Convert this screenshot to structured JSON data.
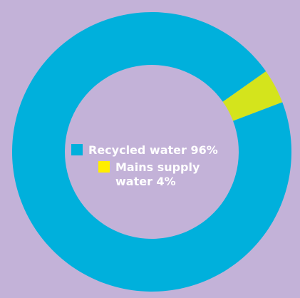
{
  "colors": {
    "background": "#c3b2d8",
    "text": "#ffffff"
  },
  "chart_data": {
    "type": "pie",
    "variant": "donut",
    "title": "",
    "slices": [
      {
        "label": "Recycled water",
        "value": 96,
        "percent_label": "96%",
        "color": "#00b0dc"
      },
      {
        "label": "Mains supply water",
        "value": 4,
        "percent_label": "4%",
        "color": "#d4e41c"
      }
    ],
    "legend": {
      "placement": "center",
      "items": [
        {
          "text": "Recycled water 96%",
          "swatch_color": "#00b0dc"
        },
        {
          "text": "Mains supply water 4%",
          "swatch_color": "#ffee00"
        }
      ]
    }
  }
}
